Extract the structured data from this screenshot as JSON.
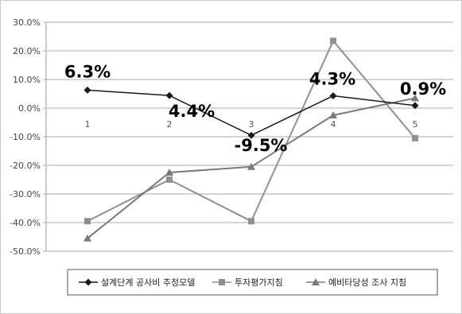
{
  "chart_data": {
    "type": "line",
    "title": "",
    "xlabel": "",
    "ylabel": "",
    "categories": [
      "1",
      "2",
      "3",
      "4",
      "5"
    ],
    "ylim": [
      -50,
      30
    ],
    "ytick_step": 10,
    "ytick_labels": [
      "30.0%",
      "20.0%",
      "10.0%",
      "0.0%",
      "-10.0%",
      "-20.0%",
      "-30.0%",
      "-40.0%",
      "-50.0%"
    ],
    "grid": true,
    "legend_position": "bottom",
    "series": [
      {
        "name": "설계단계 공사비 추정모델",
        "values": [
          6.3,
          4.4,
          -9.5,
          4.3,
          0.9
        ],
        "marker": "diamond",
        "color": "#1a1a1a",
        "data_labels": [
          "6.3%",
          "4.4%",
          "-9.5%",
          "4.3%",
          "0.9%"
        ]
      },
      {
        "name": "투자평가지침",
        "values": [
          -39.5,
          -25.0,
          -39.5,
          23.5,
          -10.5
        ],
        "marker": "square",
        "color": "#909090"
      },
      {
        "name": "예비타당성 조사 지침",
        "values": [
          -45.5,
          -22.5,
          -20.5,
          -2.5,
          3.5
        ],
        "marker": "triangle",
        "color": "#7a7a7a"
      }
    ]
  }
}
